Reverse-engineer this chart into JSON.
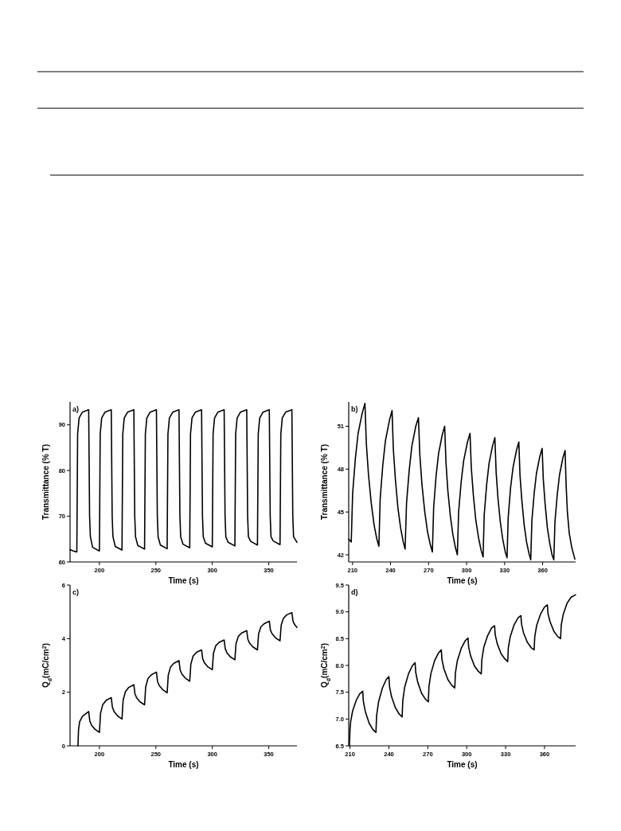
{
  "chart_data": [
    {
      "type": "line",
      "xlabel": "Time (s)",
      "ylabel": "Transmittance (% T)",
      "annotations": [
        "a)"
      ],
      "xlim": [
        174,
        375
      ],
      "ylim": [
        60,
        95
      ],
      "xticks": [
        200,
        250,
        300,
        350
      ],
      "yticks": [
        60,
        70,
        80,
        90
      ],
      "x": [
        174,
        177,
        180,
        180.7,
        182,
        185,
        190.5,
        191.3,
        192,
        194,
        200,
        200.7,
        202,
        205,
        210.5,
        211.3,
        212,
        214,
        220,
        220.7,
        222,
        225,
        230.5,
        231.3,
        232,
        234,
        240,
        240.7,
        242,
        245,
        250.5,
        251.3,
        252,
        254,
        260,
        260.7,
        262,
        265,
        270.5,
        271.3,
        272,
        274,
        280,
        280.7,
        282,
        285,
        290.5,
        291.3,
        292,
        294,
        300,
        300.7,
        302,
        305,
        310.5,
        311.3,
        312,
        314,
        320,
        320.7,
        322,
        325,
        330.5,
        331.3,
        332,
        334,
        340,
        340.7,
        342,
        345,
        350.5,
        351.3,
        352,
        354,
        360,
        360.7,
        362,
        365,
        370.5,
        371.3,
        372,
        375
      ],
      "series": [
        {
          "color": "#000000",
          "values": [
            62.7,
            62.4,
            62.2,
            88,
            91.5,
            92.8,
            93.3,
            70,
            65.5,
            63.2,
            62.4,
            88,
            91.5,
            92.8,
            93.3,
            70,
            65.5,
            63.4,
            62.6,
            88,
            91.5,
            92.8,
            93.3,
            70,
            65.5,
            63.6,
            62.8,
            88,
            91.5,
            92.8,
            93.3,
            70,
            65.5,
            63.7,
            62.9,
            88,
            91.5,
            92.8,
            93.3,
            70,
            65.5,
            63.9,
            63.1,
            88,
            91.5,
            92.8,
            93.3,
            70,
            65.5,
            64.1,
            63.3,
            88,
            91.5,
            92.8,
            93.3,
            70,
            65.5,
            64.3,
            63.5,
            88,
            91.5,
            92.8,
            93.3,
            70,
            65.5,
            64.5,
            63.7,
            88,
            91.5,
            92.8,
            93.3,
            70,
            65.5,
            64.6,
            63.8,
            88,
            91.5,
            92.8,
            93.3,
            70,
            65.5,
            64.3
          ]
        }
      ]
    },
    {
      "type": "line",
      "xlabel": "Time (s)",
      "ylabel": "Transmittance (% T)",
      "annotations": [
        "b)"
      ],
      "xlim": [
        207,
        386
      ],
      "ylim": [
        41.5,
        52.7
      ],
      "xticks": [
        210,
        240,
        270,
        300,
        330,
        360
      ],
      "yticks": [
        42,
        45,
        48,
        51
      ],
      "x": [
        207,
        208,
        209,
        210.1,
        212.2,
        214.4,
        217.6,
        219.8,
        220.9,
        222.6,
        224.8,
        227.0,
        229.2,
        230.8,
        231.8,
        233.9,
        236.0,
        239.1,
        241.2,
        242.2,
        243.8,
        245.8,
        247.9,
        250.0,
        251.5,
        252.6,
        254.7,
        256.8,
        259.9,
        262,
        263.1,
        264.8,
        267.0,
        269.2,
        271.4,
        273,
        274.0,
        275.9,
        277.9,
        280.8,
        282.7,
        283.7,
        285.2,
        287.2,
        289.2,
        291.2,
        292.7,
        293.7,
        295.7,
        297.7,
        300.7,
        302.7,
        303.7,
        305.3,
        307.3,
        309.4,
        311.5,
        313,
        313.9,
        315.8,
        317.7,
        320.4,
        322.3,
        323.3,
        324.7,
        326.6,
        328.5,
        330.5,
        331.9,
        332.8,
        334.7,
        336.6,
        339.3,
        341.2,
        342.1,
        343.6,
        345.4,
        347.3,
        349.2,
        350.6,
        351.5,
        353.3,
        355.1,
        357.8,
        359.6,
        360.5,
        361.9,
        363.7,
        365.6,
        367.4,
        368.8,
        369.7,
        371.5,
        373.3,
        376.0,
        377.7,
        378.5,
        379.5,
        381,
        383,
        385.4
      ],
      "series": [
        {
          "color": "#000000",
          "values": [
            43.1,
            43.0,
            42.9,
            46.3,
            48.7,
            50.5,
            51.9,
            52.6,
            49.8,
            47.6,
            45.6,
            44.1,
            43.1,
            42.6,
            45.9,
            48.3,
            50.0,
            51.4,
            52.1,
            49.4,
            47.3,
            45.3,
            43.9,
            42.9,
            42.4,
            45.6,
            47.9,
            49.6,
            51.0,
            51.6,
            49.0,
            46.9,
            45.0,
            43.6,
            42.7,
            42.2,
            45.3,
            47.5,
            49.1,
            50.4,
            51.0,
            48.5,
            46.5,
            44.7,
            43.4,
            42.5,
            42.0,
            45.0,
            47.1,
            48.6,
            49.9,
            50.5,
            48.1,
            46.2,
            44.4,
            43.2,
            42.3,
            41.85,
            44.8,
            46.9,
            48.4,
            49.6,
            50.2,
            47.8,
            46.0,
            44.3,
            43.1,
            42.2,
            41.8,
            44.6,
            46.7,
            48.1,
            49.3,
            49.9,
            47.6,
            45.8,
            44.1,
            42.9,
            42.1,
            41.65,
            44.4,
            46.3,
            47.7,
            48.9,
            49.45,
            47.3,
            45.6,
            43.9,
            42.8,
            42.0,
            41.65,
            44.3,
            46.2,
            47.6,
            48.8,
            49.3,
            46.9,
            45.0,
            43.5,
            42.5,
            41.7
          ]
        }
      ]
    },
    {
      "type": "line",
      "xlabel": "Time (s)",
      "ylabel": "Q$_{d}$(mC/cm$^{2}$)",
      "annotations": [
        "c)"
      ],
      "xlim": [
        174,
        375
      ],
      "ylim": [
        0,
        6
      ],
      "xticks": [
        200,
        250,
        300,
        350
      ],
      "yticks": [
        0,
        2,
        4,
        6
      ],
      "x": [
        181,
        181.5,
        182.5,
        185,
        188,
        190.5,
        191.5,
        193,
        196,
        200,
        201,
        203,
        206,
        210.5,
        211.5,
        213,
        216,
        220,
        221,
        223,
        226,
        230.5,
        231.5,
        233,
        236,
        240,
        241,
        243,
        246,
        250.5,
        251.5,
        253,
        256,
        260,
        261,
        263,
        266,
        270.5,
        271.5,
        273,
        276,
        280,
        281,
        283,
        286,
        290.5,
        291.5,
        293,
        296,
        300,
        301,
        303,
        306,
        310.5,
        311.5,
        313,
        316,
        320,
        321,
        323,
        326,
        330.5,
        331.5,
        333,
        336,
        340,
        341,
        343,
        346,
        350.5,
        351.5,
        353,
        356,
        360,
        361,
        363,
        366,
        370.5,
        371.5,
        373,
        375
      ],
      "series": [
        {
          "color": "#000000",
          "values": [
            0,
            0.6,
            0.9,
            1.1,
            1.2,
            1.28,
            0.93,
            0.77,
            0.62,
            0.5,
            1.22,
            1.54,
            1.7,
            1.8,
            1.44,
            1.28,
            1.12,
            1.0,
            1.7,
            2.02,
            2.18,
            2.28,
            1.94,
            1.79,
            1.64,
            1.53,
            2.2,
            2.51,
            2.65,
            2.75,
            2.4,
            2.25,
            2.1,
            1.98,
            2.64,
            2.94,
            3.08,
            3.18,
            2.83,
            2.68,
            2.53,
            2.41,
            3.05,
            3.35,
            3.49,
            3.58,
            3.25,
            3.1,
            2.95,
            2.84,
            3.45,
            3.73,
            3.86,
            3.95,
            3.62,
            3.47,
            3.32,
            3.21,
            3.81,
            4.08,
            4.21,
            4.3,
            3.98,
            3.83,
            3.69,
            3.58,
            4.17,
            4.44,
            4.56,
            4.65,
            4.32,
            4.18,
            4.03,
            3.92,
            4.5,
            4.76,
            4.89,
            4.97,
            4.65,
            4.52,
            4.42
          ]
        }
      ]
    },
    {
      "type": "line",
      "xlabel": "Time (s)",
      "ylabel": "Q$_{d}$(mC/cm$^{2}$)",
      "annotations": [
        "d)"
      ],
      "xlim": [
        209,
        384
      ],
      "ylim": [
        6.5,
        9.5
      ],
      "xticks": [
        210,
        240,
        270,
        300,
        330,
        360
      ],
      "yticks": [
        6.5,
        {
          "value": 7,
          "label": "7.0"
        },
        7.5,
        {
          "value": 8,
          "label": "8.0"
        },
        8.5,
        {
          "value": 9,
          "label": "9.0"
        },
        9.5
      ],
      "x": [
        209.5,
        210,
        210.5,
        212,
        215,
        217.5,
        219.8,
        220.3,
        221.8,
        224.8,
        227.8,
        230,
        230.5,
        232,
        235,
        238,
        240,
        240.5,
        242,
        245,
        248,
        250.2,
        250.7,
        252.2,
        255.2,
        258.2,
        260.2,
        260.7,
        262.2,
        265.2,
        268.2,
        270.4,
        270.9,
        272.4,
        275.4,
        278.4,
        280.4,
        280.9,
        282.4,
        285.4,
        288.4,
        290.8,
        291.3,
        292.8,
        295.8,
        298.8,
        301,
        301.5,
        303,
        306,
        309,
        311.2,
        311.7,
        313.2,
        316.2,
        319.2,
        321.5,
        322,
        323.5,
        326.5,
        329.5,
        331.6,
        332.1,
        333.6,
        336.6,
        339.6,
        341.8,
        342.3,
        343.8,
        346.8,
        349.8,
        352,
        352.5,
        354,
        357,
        360,
        362.2,
        362.7,
        364.2,
        367.2,
        370.2,
        372.4,
        372.9,
        374.4,
        377.4,
        380.4,
        384
      ],
      "series": [
        {
          "color": "#000000",
          "values": [
            6.5,
            6.8,
            6.95,
            7.15,
            7.36,
            7.47,
            7.52,
            7.33,
            7.14,
            6.92,
            6.8,
            6.75,
            7.06,
            7.32,
            7.58,
            7.74,
            7.79,
            7.6,
            7.42,
            7.21,
            7.09,
            7.04,
            7.34,
            7.6,
            7.85,
            8.0,
            8.05,
            7.87,
            7.69,
            7.48,
            7.37,
            7.32,
            7.61,
            7.85,
            8.1,
            8.24,
            8.29,
            8.11,
            7.94,
            7.74,
            7.63,
            7.58,
            7.86,
            8.09,
            8.32,
            8.46,
            8.51,
            8.34,
            8.18,
            7.99,
            7.89,
            7.84,
            8.11,
            8.34,
            8.56,
            8.7,
            8.74,
            8.57,
            8.41,
            8.22,
            8.12,
            8.07,
            8.33,
            8.54,
            8.76,
            8.89,
            8.93,
            8.77,
            8.61,
            8.43,
            8.33,
            8.29,
            8.54,
            8.75,
            8.96,
            9.09,
            9.13,
            8.97,
            8.82,
            8.64,
            8.54,
            8.5,
            8.75,
            8.95,
            9.16,
            9.27,
            9.32
          ]
        }
      ]
    }
  ]
}
